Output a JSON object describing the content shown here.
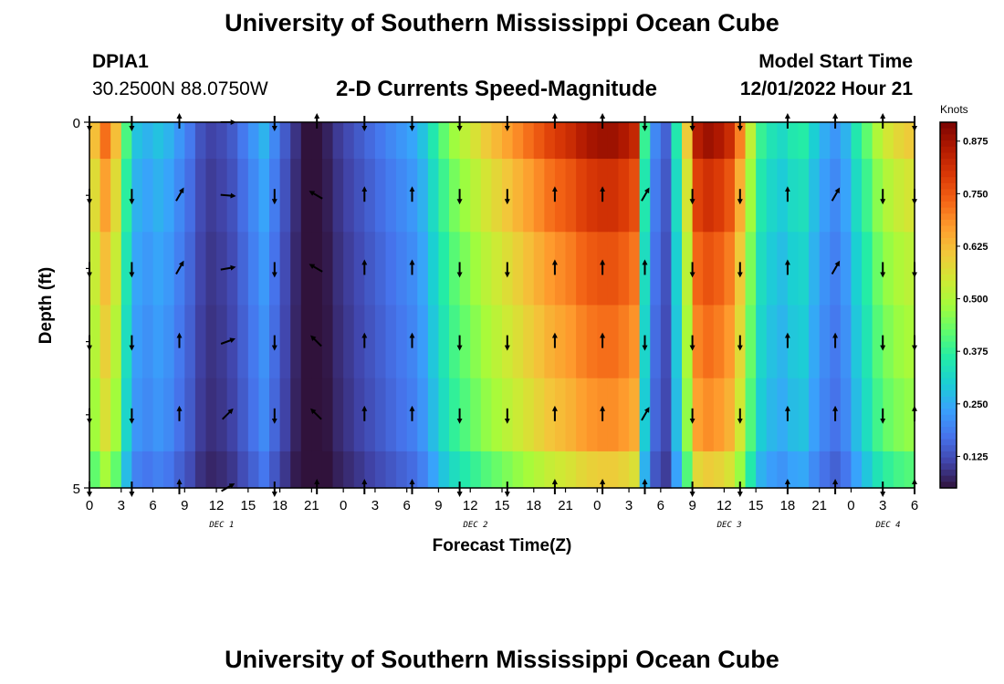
{
  "header": {
    "title": "University of Southern Mississippi Ocean Cube",
    "station_id": "DPIA1",
    "coordinates": "30.2500N  88.0750W",
    "subtitle": "2-D Currents Speed-Magnitude",
    "model_start_label": "Model Start Time",
    "model_start_value": "12/01/2022 Hour 21",
    "bottom_title": "University of Southern Mississippi Ocean Cube"
  },
  "colors": {
    "scale": [
      "#30123b",
      "#4145ab",
      "#4675ed",
      "#39a2fc",
      "#1bcfd4",
      "#24eca6",
      "#61fc6c",
      "#a4fc3b",
      "#d1e834",
      "#f3c63a",
      "#fe9b2d",
      "#f36315",
      "#d93806",
      "#b11901",
      "#7a0402"
    ],
    "arrow": "#000000"
  },
  "chart_data": {
    "type": "heatmap",
    "title": "2-D Currents Speed-Magnitude",
    "xlabel": "Forecast Time(Z)",
    "ylabel": "Depth (ft)",
    "units": "Knots",
    "xlim": [
      0,
      78
    ],
    "ylim": [
      5,
      0
    ],
    "y_ticks": [
      "0",
      "5"
    ],
    "x_ticks": [
      "0",
      "3",
      "6",
      "9",
      "12",
      "15",
      "18",
      "21",
      "0",
      "3",
      "6",
      "9",
      "12",
      "15",
      "18",
      "21",
      "0",
      "3",
      "6",
      "9",
      "12",
      "15",
      "18",
      "21",
      "0",
      "3",
      "6"
    ],
    "date_labels": [
      "DEC 1",
      "DEC 2",
      "DEC 3",
      "DEC 4"
    ],
    "colorbar": {
      "min": 0.05,
      "max": 0.92,
      "ticks": [
        0.125,
        0.25,
        0.375,
        0.5,
        0.625,
        0.75,
        0.875
      ],
      "tick_labels": [
        "0.125",
        "0.250",
        "0.375",
        "0.500",
        "0.625",
        "0.750",
        "0.875"
      ]
    },
    "depth_levels": [
      0,
      1,
      2,
      3,
      4,
      5
    ],
    "speed_surface": [
      0.62,
      0.72,
      0.62,
      0.4,
      0.28,
      0.26,
      0.28,
      0.26,
      0.22,
      0.18,
      0.13,
      0.11,
      0.12,
      0.14,
      0.18,
      0.22,
      0.26,
      0.2,
      0.14,
      0.09,
      0.05,
      0.05,
      0.07,
      0.1,
      0.12,
      0.14,
      0.16,
      0.18,
      0.2,
      0.22,
      0.24,
      0.28,
      0.35,
      0.42,
      0.48,
      0.52,
      0.56,
      0.6,
      0.63,
      0.66,
      0.69,
      0.72,
      0.75,
      0.78,
      0.8,
      0.82,
      0.85,
      0.87,
      0.88,
      0.88,
      0.86,
      0.83,
      0.38,
      0.2,
      0.15,
      0.35,
      0.6,
      0.85,
      0.88,
      0.86,
      0.82,
      0.7,
      0.52,
      0.38,
      0.34,
      0.32,
      0.35,
      0.36,
      0.3,
      0.25,
      0.22,
      0.26,
      0.35,
      0.42,
      0.5,
      0.55,
      0.58,
      0.6
    ],
    "depth_factors": [
      1.0,
      0.92,
      0.86,
      0.82,
      0.78,
      0.68
    ],
    "direction_times": [
      0,
      4,
      8.5,
      13,
      17.5,
      21.5,
      26,
      30.5,
      35,
      39.5,
      44,
      48.5,
      52.5,
      57,
      61.5,
      66,
      70.5,
      75,
      78
    ],
    "direction_rows": [
      [
        180,
        180,
        0,
        90,
        180,
        0,
        180,
        180,
        180,
        180,
        0,
        0,
        180,
        180,
        180,
        0,
        0,
        0,
        180
      ],
      [
        180,
        180,
        30,
        95,
        180,
        -60,
        0,
        0,
        180,
        180,
        0,
        0,
        30,
        180,
        180,
        0,
        30,
        180,
        180
      ],
      [
        180,
        180,
        30,
        80,
        180,
        -60,
        0,
        0,
        180,
        180,
        0,
        0,
        0,
        180,
        180,
        0,
        30,
        180,
        180
      ],
      [
        180,
        180,
        0,
        70,
        180,
        -45,
        0,
        0,
        180,
        180,
        0,
        0,
        180,
        180,
        180,
        0,
        0,
        180,
        180
      ],
      [
        180,
        180,
        0,
        45,
        180,
        -45,
        0,
        0,
        180,
        180,
        0,
        0,
        30,
        180,
        180,
        0,
        0,
        180,
        0
      ],
      [
        180,
        180,
        0,
        60,
        180,
        0,
        0,
        0,
        180,
        180,
        0,
        0,
        0,
        180,
        180,
        0,
        0,
        180,
        0
      ]
    ]
  }
}
